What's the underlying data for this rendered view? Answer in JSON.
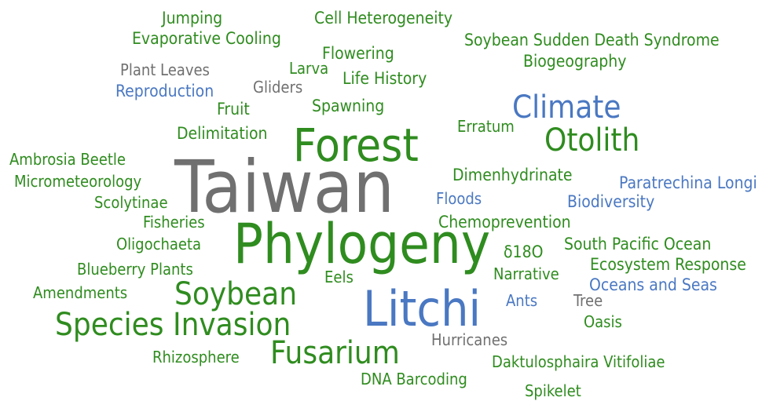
{
  "words": [
    "Jumping",
    "Cell Heterogeneity",
    "Evaporative Cooling",
    "Soybean Sudden Death Syndrome",
    "Flowering",
    "Biogeography",
    "Plant Leaves",
    "Larva",
    "Life History",
    "Reproduction",
    "Gliders",
    "Fruit",
    "Spawning",
    "Climate",
    "Delimitation",
    "Erratum",
    "Otolith",
    "Forest",
    "Taiwan",
    "Ambrosia Beetle",
    "Micrometeorology",
    "Dimenhydrinate",
    "Paratrechina Longi",
    "Scolytinae",
    "Floods",
    "Biodiversity",
    "Fisheries",
    "Chemoprevention",
    "Phylogeny",
    "Oligochaeta",
    "δ18O",
    "South Pacific Ocean",
    "Ecosystem Response",
    "Blueberry Plants",
    "Eels",
    "Narrative",
    "Oceans and Seas",
    "Amendments",
    "Soybean",
    "Ants",
    "Tree",
    "Litchi",
    "Species Invasion",
    "Oasis",
    "Hurricanes",
    "Fusarium",
    "Rhizosphere",
    "Daktulosphaira Vitifoliae",
    "DNA Barcoding",
    "Spikelet"
  ]
}
